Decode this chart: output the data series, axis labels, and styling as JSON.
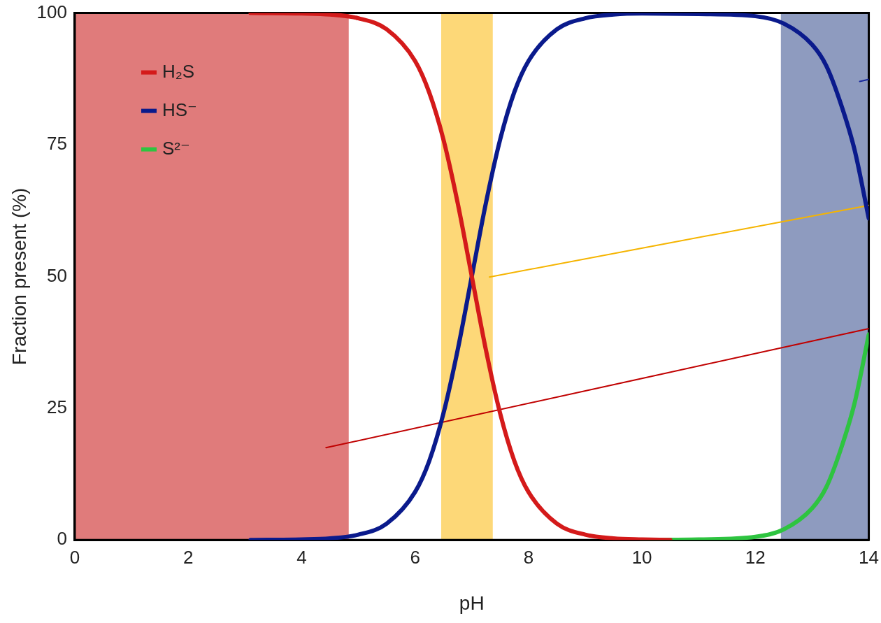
{
  "chart_data": {
    "type": "line",
    "xlabel": "pH",
    "ylabel": "Fraction present (%)",
    "xlim": [
      0,
      14
    ],
    "xticks": [
      0,
      2,
      4,
      6,
      8,
      10,
      12,
      14
    ],
    "ylim": [
      0,
      100
    ],
    "yticks": [
      0,
      25,
      50,
      75,
      100
    ],
    "grid": false,
    "legend": "top left",
    "marker": "none",
    "line_style": "solid",
    "series": [
      {
        "name": "H₂S",
        "color": "#d41a1a",
        "x": [
          3.1,
          4,
          4.5,
          5,
          5.5,
          6,
          6.25,
          6.5,
          6.75,
          7,
          7.25,
          7.5,
          7.75,
          8,
          8.5,
          9,
          9.5,
          10,
          10.5
        ],
        "values": [
          100,
          99.9,
          99.7,
          99,
          96.9,
          90.9,
          84.9,
          76,
          64,
          50,
          36,
          24,
          15,
          9.1,
          3.1,
          1,
          0.3,
          0.1,
          0
        ]
      },
      {
        "name": "HS⁻",
        "color": "#0a1a8c",
        "x": [
          3.1,
          4,
          4.5,
          5,
          5.5,
          6,
          6.25,
          6.5,
          6.75,
          7,
          7.25,
          7.5,
          7.75,
          8,
          8.5,
          9,
          9.5,
          10,
          11,
          12,
          12.5,
          13,
          13.25,
          13.5,
          13.75,
          14
        ],
        "values": [
          0,
          0.1,
          0.3,
          1,
          3.1,
          9.1,
          15,
          24,
          36,
          50,
          64,
          76,
          85,
          90.9,
          96.9,
          99,
          99.7,
          99.9,
          99.8,
          99.4,
          98,
          94,
          90,
          83,
          74,
          61
        ]
      },
      {
        "name": "S²⁻",
        "color": "#2ec440",
        "x": [
          10,
          11,
          12,
          12.5,
          13,
          13.25,
          13.5,
          13.75,
          14
        ],
        "values": [
          0,
          0.1,
          0.6,
          2,
          6,
          10,
          17,
          26,
          39
        ]
      },
      {
        "color": "#1a2a9c",
        "x": [
          13.84,
          14
        ],
        "values": [
          87,
          87.4
        ]
      },
      {
        "color": "#f5b400",
        "x": [
          7.31,
          14
        ],
        "values": [
          49.9,
          63.5
        ]
      },
      {
        "color": "#c00000",
        "x": [
          4.43,
          14
        ],
        "values": [
          17.5,
          40.1
        ]
      }
    ],
    "bands": [
      {
        "axis": "x",
        "from": 0,
        "to": 4.83,
        "color": "#cb2323"
      },
      {
        "axis": "x",
        "from": 6.46,
        "to": 7.37,
        "color": "#fcbe1e"
      },
      {
        "axis": "x",
        "from": 12.45,
        "to": 14,
        "color": "#435894"
      }
    ]
  }
}
